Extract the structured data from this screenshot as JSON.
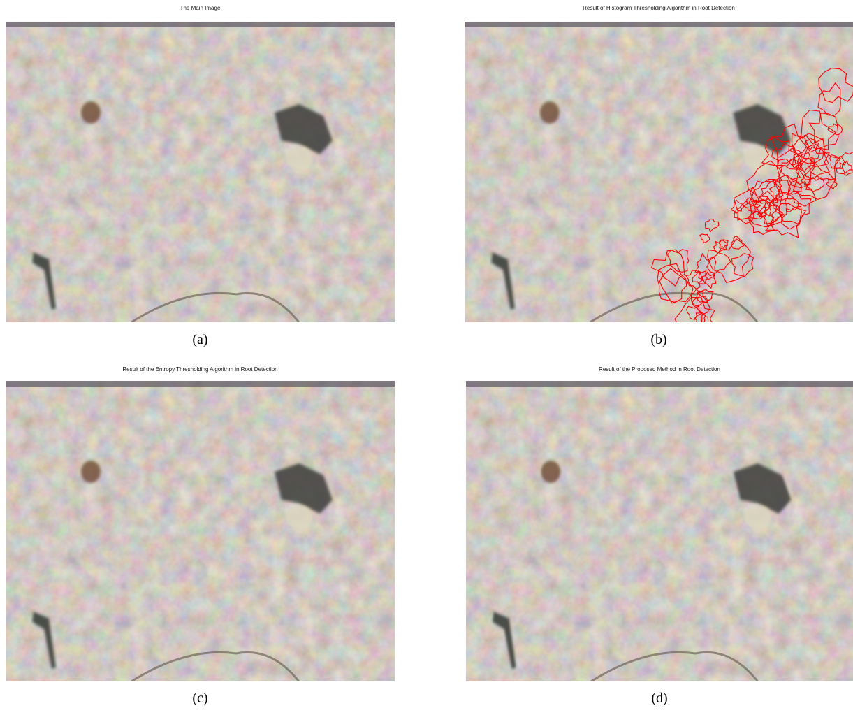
{
  "panels": [
    {
      "title": "The Main Image",
      "caption": "(a)"
    },
    {
      "title": "Result of Histogram Thresholding Algorithm in Root Detection",
      "caption": "(b)"
    },
    {
      "title": "Result of the Entropy Thresholding Algorithm in Root Detection",
      "caption": "(c)"
    },
    {
      "title": "Result of the Proposed Method in Root Detection",
      "caption": "(d)"
    }
  ]
}
